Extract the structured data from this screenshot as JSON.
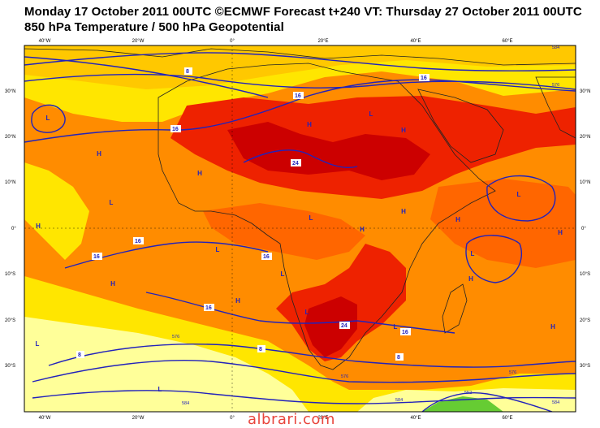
{
  "header": {
    "line1": "Monday 17 October 2011 00UTC ©ECMWF Forecast t+240 VT: Thursday 27 October 2011 00UTC",
    "line2": "850 hPa Temperature / 500 hPa Geopotential"
  },
  "axes": {
    "lon_labels": [
      "40°W",
      "20°W",
      "0°",
      "20°E",
      "40°E",
      "60°E"
    ],
    "lat_labels": [
      "30°N",
      "20°N",
      "10°N",
      "0°",
      "10°S",
      "20°S",
      "30°S"
    ]
  },
  "pressure_labels": {
    "highs": [
      "H",
      "H",
      "H",
      "H",
      "H",
      "H",
      "H",
      "H",
      "H",
      "H",
      "H",
      "H",
      "H"
    ],
    "lows": [
      "L",
      "L",
      "L",
      "L",
      "L",
      "L",
      "L",
      "L",
      "L",
      "L",
      "L",
      "L"
    ]
  },
  "contour_labels": {
    "temperature": [
      "8",
      "16",
      "16",
      "16",
      "16",
      "16",
      "16",
      "16",
      "16",
      "8",
      "8",
      "8",
      "24",
      "24"
    ],
    "geopotential": [
      "576",
      "576",
      "576",
      "576",
      "584",
      "584",
      "584",
      "552",
      "584"
    ]
  },
  "colors": {
    "cold_yellow": "#ffff99",
    "yellow": "#ffe600",
    "gold": "#ffc800",
    "orange": "#ff8c00",
    "dark_orange": "#ff6600",
    "red": "#ee2200",
    "dark_red": "#cc0000",
    "green": "#66cc33",
    "contour": "#2222bb"
  },
  "watermark": "albrari.com"
}
